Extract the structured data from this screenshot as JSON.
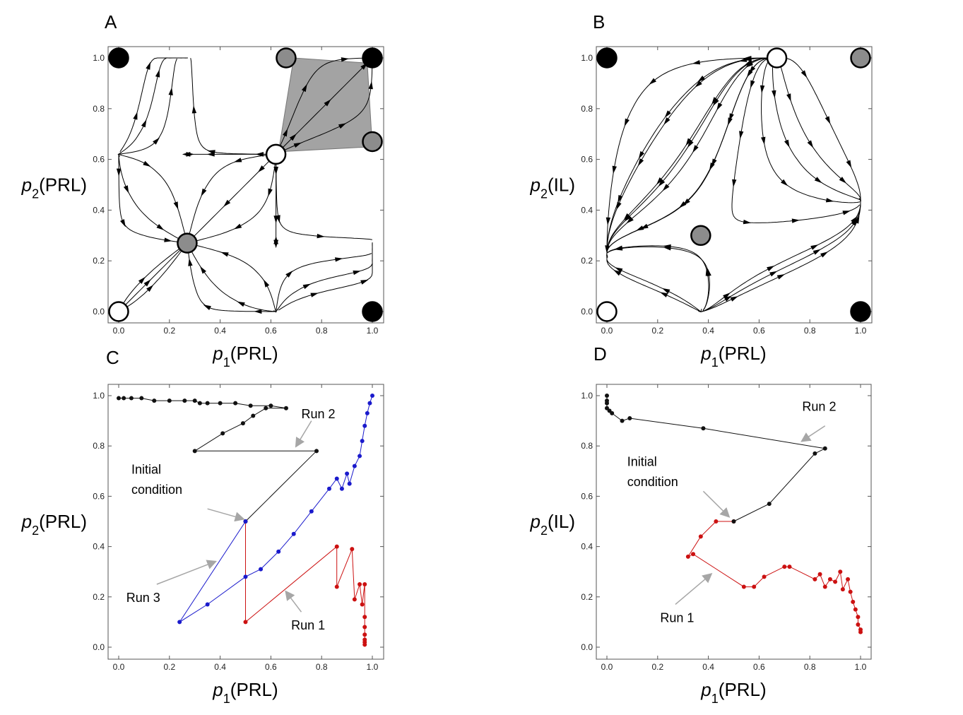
{
  "chart_data": [
    {
      "panel": "A",
      "type": "stream",
      "xlabel": "p1(PRL)",
      "ylabel": "p2(PRL)",
      "xlim": [
        0,
        1
      ],
      "ylim": [
        0,
        1
      ],
      "xticks": [
        "0.0",
        "0.2",
        "0.4",
        "0.6",
        "0.8",
        "1.0"
      ],
      "yticks": [
        "0.0",
        "0.2",
        "0.4",
        "0.6",
        "0.8",
        "1.0"
      ],
      "fixed_points": [
        {
          "x": 0.0,
          "y": 1.0,
          "kind": "stable"
        },
        {
          "x": 1.0,
          "y": 1.0,
          "kind": "stable"
        },
        {
          "x": 1.0,
          "y": 0.0,
          "kind": "stable"
        },
        {
          "x": 0.0,
          "y": 0.0,
          "kind": "unstable"
        },
        {
          "x": 0.62,
          "y": 0.62,
          "kind": "unstable"
        },
        {
          "x": 0.27,
          "y": 0.27,
          "kind": "saddle"
        },
        {
          "x": 0.66,
          "y": 1.0,
          "kind": "saddle"
        },
        {
          "x": 1.0,
          "y": 0.67,
          "kind": "saddle"
        }
      ],
      "shaded_region": [
        [
          0.63,
          0.63
        ],
        [
          0.69,
          1.0
        ],
        [
          0.98,
          0.98
        ],
        [
          1.0,
          0.65
        ]
      ]
    },
    {
      "panel": "B",
      "type": "stream",
      "xlabel": "p1(PRL)",
      "ylabel": "p2(IL)",
      "xlim": [
        0,
        1
      ],
      "ylim": [
        0,
        1
      ],
      "xticks": [
        "0.0",
        "0.2",
        "0.4",
        "0.6",
        "0.8",
        "1.0"
      ],
      "yticks": [
        "0.0",
        "0.2",
        "0.4",
        "0.6",
        "0.8",
        "1.0"
      ],
      "fixed_points": [
        {
          "x": 0.0,
          "y": 1.0,
          "kind": "stable"
        },
        {
          "x": 1.0,
          "y": 0.0,
          "kind": "stable"
        },
        {
          "x": 0.0,
          "y": 0.0,
          "kind": "unstable"
        },
        {
          "x": 0.67,
          "y": 1.0,
          "kind": "unstable"
        },
        {
          "x": 0.37,
          "y": 0.3,
          "kind": "saddle"
        },
        {
          "x": 1.0,
          "y": 1.0,
          "kind": "saddle"
        }
      ]
    },
    {
      "panel": "C",
      "type": "line",
      "xlabel": "p1(PRL)",
      "ylabel": "p2(PRL)",
      "xlim": [
        0,
        1
      ],
      "ylim": [
        0,
        1
      ],
      "xticks": [
        "0.0",
        "0.2",
        "0.4",
        "0.6",
        "0.8",
        "1.0"
      ],
      "yticks": [
        "0.0",
        "0.2",
        "0.4",
        "0.6",
        "0.8",
        "1.0"
      ],
      "initial_condition": {
        "x": 0.5,
        "y": 0.5
      },
      "series": [
        {
          "name": "Run 1",
          "color": "#cc1111",
          "x": [
            0.5,
            0.5,
            0.86,
            0.86,
            0.92,
            0.93,
            0.95,
            0.96,
            0.97,
            0.97,
            0.97,
            0.97,
            0.97,
            0.97,
            0.97
          ],
          "y": [
            0.5,
            0.1,
            0.4,
            0.24,
            0.39,
            0.19,
            0.25,
            0.17,
            0.25,
            0.12,
            0.08,
            0.05,
            0.03,
            0.02,
            0.01
          ]
        },
        {
          "name": "Run 2",
          "color": "#111111",
          "x": [
            0.5,
            0.78,
            0.3,
            0.41,
            0.49,
            0.53,
            0.58,
            0.66,
            0.6,
            0.52,
            0.46,
            0.4,
            0.35,
            0.32,
            0.3,
            0.26,
            0.2,
            0.14,
            0.09,
            0.05,
            0.02,
            0.0
          ],
          "y": [
            0.5,
            0.78,
            0.78,
            0.85,
            0.89,
            0.92,
            0.95,
            0.95,
            0.96,
            0.96,
            0.97,
            0.97,
            0.97,
            0.97,
            0.98,
            0.98,
            0.98,
            0.98,
            0.99,
            0.99,
            0.99,
            0.99
          ]
        },
        {
          "name": "Run 3",
          "color": "#1a1acc",
          "x": [
            0.5,
            0.24,
            0.35,
            0.5,
            0.56,
            0.63,
            0.69,
            0.76,
            0.83,
            0.86,
            0.88,
            0.9,
            0.91,
            0.93,
            0.95,
            0.96,
            0.97,
            0.98,
            0.99,
            1.0
          ],
          "y": [
            0.5,
            0.1,
            0.17,
            0.28,
            0.31,
            0.38,
            0.45,
            0.54,
            0.63,
            0.67,
            0.63,
            0.69,
            0.65,
            0.72,
            0.76,
            0.82,
            0.88,
            0.93,
            0.97,
            1.0
          ]
        }
      ],
      "annotations": [
        {
          "text": "Initial",
          "x": 0.05,
          "y": 0.69
        },
        {
          "text": "condition",
          "x": 0.05,
          "y": 0.61
        },
        {
          "text": "Run 1",
          "x": 0.68,
          "y": 0.07
        },
        {
          "text": "Run 2",
          "x": 0.72,
          "y": 0.91
        },
        {
          "text": "Run 3",
          "x": 0.03,
          "y": 0.18
        }
      ]
    },
    {
      "panel": "D",
      "type": "line",
      "xlabel": "p1(PRL)",
      "ylabel": "p2(IL)",
      "xlim": [
        0,
        1
      ],
      "ylim": [
        0,
        1
      ],
      "xticks": [
        "0.0",
        "0.2",
        "0.4",
        "0.6",
        "0.8",
        "1.0"
      ],
      "yticks": [
        "0.0",
        "0.2",
        "0.4",
        "0.6",
        "0.8",
        "1.0"
      ],
      "initial_condition": {
        "x": 0.5,
        "y": 0.5
      },
      "series": [
        {
          "name": "Run 1",
          "color": "#cc1111",
          "x": [
            0.5,
            0.43,
            0.37,
            0.32,
            0.34,
            0.54,
            0.58,
            0.62,
            0.7,
            0.72,
            0.82,
            0.84,
            0.86,
            0.88,
            0.9,
            0.92,
            0.93,
            0.95,
            0.96,
            0.97,
            0.98,
            0.99,
            0.99,
            1.0,
            1.0
          ],
          "y": [
            0.5,
            0.5,
            0.44,
            0.36,
            0.37,
            0.24,
            0.24,
            0.28,
            0.32,
            0.32,
            0.27,
            0.29,
            0.24,
            0.27,
            0.26,
            0.3,
            0.23,
            0.27,
            0.22,
            0.18,
            0.15,
            0.12,
            0.09,
            0.07,
            0.06
          ]
        },
        {
          "name": "Run 2",
          "color": "#111111",
          "x": [
            0.5,
            0.64,
            0.82,
            0.86,
            0.38,
            0.09,
            0.06,
            0.02,
            0.01,
            0.0,
            0.0,
            0.0,
            0.0
          ],
          "y": [
            0.5,
            0.57,
            0.77,
            0.79,
            0.87,
            0.91,
            0.9,
            0.93,
            0.94,
            0.95,
            0.97,
            0.98,
            1.0
          ]
        }
      ],
      "annotations": [
        {
          "text": "Initial",
          "x": 0.08,
          "y": 0.72
        },
        {
          "text": "condition",
          "x": 0.08,
          "y": 0.64
        },
        {
          "text": "Run 1",
          "x": 0.21,
          "y": 0.1
        },
        {
          "text": "Run 2",
          "x": 0.77,
          "y": 0.94
        }
      ]
    }
  ]
}
